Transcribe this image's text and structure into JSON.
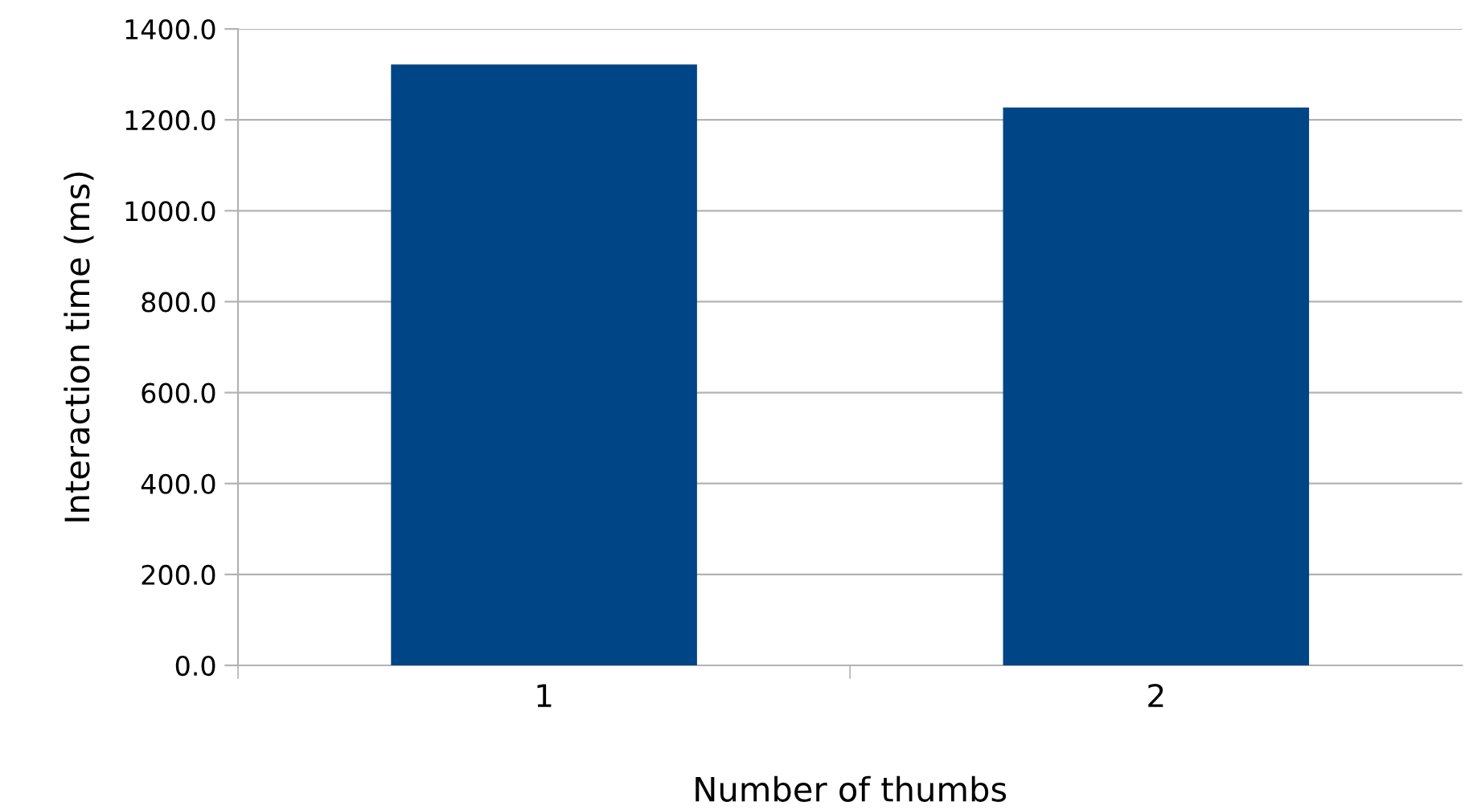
{
  "chart_data": {
    "type": "bar",
    "xlabel": "Number of thumbs",
    "ylabel": "Interaction time (ms)",
    "categories": [
      "1",
      "2"
    ],
    "series": [
      {
        "color": "#004586",
        "values": [
          1322,
          1227
        ]
      }
    ],
    "ylim": [
      0,
      1400
    ],
    "yticks": [
      {
        "value": 0,
        "label": "0.0"
      },
      {
        "value": 200,
        "label": "200.0"
      },
      {
        "value": 400,
        "label": "400.0"
      },
      {
        "value": 600,
        "label": "600.0"
      },
      {
        "value": 800,
        "label": "800.0"
      },
      {
        "value": 1000,
        "label": "1000.0"
      },
      {
        "value": 1200,
        "label": "1200.0"
      },
      {
        "value": 1400,
        "label": "1400.0"
      }
    ],
    "grid": "y",
    "legend": false
  }
}
